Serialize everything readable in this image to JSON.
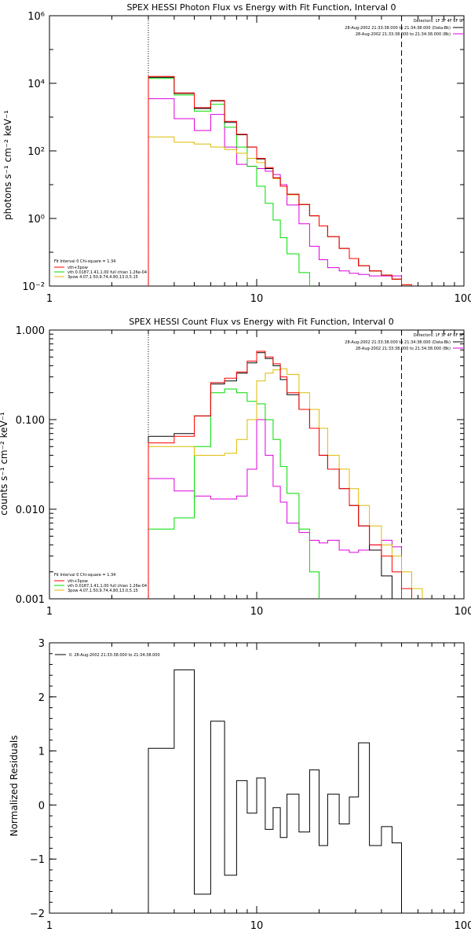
{
  "chart_data": [
    {
      "type": "line",
      "title": "SPEX HESSI Photon Flux vs Energy with Fit Function, Interval 0",
      "xlabel": "",
      "ylabel": "photons s⁻¹ cm⁻² keV⁻¹",
      "xscale": "log",
      "yscale": "log",
      "xlim": [
        1,
        100
      ],
      "ylim": [
        0.01,
        1000000
      ],
      "x_ticks": [
        "1",
        "10",
        "100"
      ],
      "y_ticks": [
        "10⁻²",
        "10⁰",
        "10²",
        "10⁴",
        "10⁶"
      ],
      "info_lines": [
        "Detectors: 1F 3F 4F 6F 9F",
        "28-Aug-2002 21:33:38.000 to 21:34:38.000 (Data-Bk)",
        "28-Aug-2002 21:33:38.000 to 21:34:38.000 (Bk)"
      ],
      "fit_text": "Fit Interval 0   Chi-square = 1.34",
      "fit_legend": [
        "vth+3pow",
        "vth 0.0187,1.41,1.00  full chian 1.26e-04",
        "3pow 4.07,1.50,9.74,4.80,13.0,5.15"
      ],
      "markers": [
        3,
        50
      ],
      "edges": [
        3,
        4,
        5,
        6,
        7,
        8,
        9,
        10,
        11,
        12,
        13,
        14,
        16,
        18,
        20,
        22,
        25,
        28,
        31,
        35,
        40,
        45,
        50,
        56,
        63
      ],
      "series": [
        {
          "name": "Data-Bk",
          "color": "#000000",
          "values": [
            15000,
            5000,
            1800,
            3000,
            700,
            300,
            130,
            58,
            30,
            16,
            9,
            5.2,
            2.6,
            1.2,
            0.6,
            0.29,
            0.13,
            0.065,
            0.04,
            0.028,
            0.021,
            0.016
          ]
        },
        {
          "name": "vth+3pow",
          "color": "#ff0000",
          "values": [
            16000,
            5200,
            1900,
            3100,
            750,
            310,
            130,
            60,
            32,
            16,
            9,
            5.2,
            2.6,
            1.2,
            0.6,
            0.29,
            0.13,
            0.065,
            0.04,
            0.028,
            0.021,
            0.016,
            0.011
          ]
        },
        {
          "name": "vth",
          "color": "#00dd00",
          "values": [
            14000,
            4500,
            1500,
            2400,
            500,
            130,
            35,
            9,
            2.8,
            0.9,
            0.27,
            0.09,
            0.025,
            0.008
          ]
        },
        {
          "name": "3pow",
          "color": "#ddbb00",
          "values": [
            260,
            180,
            160,
            130,
            110,
            85,
            60,
            45,
            30,
            15,
            9,
            5,
            2.6,
            1.2,
            0.6,
            0.29,
            0.13,
            0.065,
            0.04,
            0.028,
            0.021,
            0.016,
            0.011,
            0.007
          ]
        },
        {
          "name": "Bk",
          "color": "#dd00dd",
          "values": [
            3500,
            900,
            400,
            1200,
            130,
            40,
            35,
            30,
            25,
            20,
            10,
            2.5,
            0.7,
            0.15,
            0.06,
            0.035,
            0.028,
            0.024,
            0.022,
            0.02,
            0.02,
            0.02
          ]
        }
      ]
    },
    {
      "type": "line",
      "title": "SPEX HESSI Count Flux vs Energy with Fit Function, Interval 0",
      "xlabel": "",
      "ylabel": "counts s⁻¹ cm⁻² keV⁻¹",
      "xscale": "log",
      "yscale": "log",
      "xlim": [
        1,
        100
      ],
      "ylim": [
        0.001,
        1
      ],
      "x_ticks": [
        "1",
        "10",
        "100"
      ],
      "y_ticks": [
        "0.001",
        "0.010",
        "0.100",
        "1.000"
      ],
      "info_lines": [
        "Detectors: 1F 3F 4F 6F 9F",
        "28-Aug-2002 21:33:38.000 to 21:34:38.000 (Data-Bk)",
        "28-Aug-2002 21:33:38.000 to 21:34:38.000 (Bk)"
      ],
      "fit_text": "Fit Interval 0   Chi-square = 1.34",
      "fit_legend": [
        "vth+3pow",
        "vth 0.0187,1.41,1.00  full chian 1.26e-04",
        "3pow 4.07,1.50,9.74,4.80,13.0,5.15"
      ],
      "markers": [
        3,
        50
      ],
      "edges": [
        3,
        4,
        5,
        6,
        7,
        8,
        9,
        10,
        11,
        12,
        13,
        14,
        16,
        18,
        20,
        22,
        25,
        28,
        31,
        35,
        40,
        45,
        50,
        56,
        63
      ],
      "series": [
        {
          "name": "Data-Bk",
          "color": "#000000",
          "values": [
            0.065,
            0.07,
            0.11,
            0.25,
            0.27,
            0.33,
            0.43,
            0.56,
            0.48,
            0.4,
            0.28,
            0.19,
            0.13,
            0.08,
            0.04,
            0.028,
            0.017,
            0.011,
            0.0065,
            0.0035,
            0.0018,
            0.001
          ]
        },
        {
          "name": "vth+3pow",
          "color": "#ff0000",
          "values": [
            0.055,
            0.065,
            0.11,
            0.26,
            0.29,
            0.34,
            0.45,
            0.58,
            0.5,
            0.42,
            0.3,
            0.2,
            0.13,
            0.08,
            0.04,
            0.028,
            0.017,
            0.011,
            0.0065,
            0.004,
            0.003,
            0.002,
            0.0013,
            0.0009
          ]
        },
        {
          "name": "vth",
          "color": "#00dd00",
          "values": [
            0.006,
            0.008,
            0.05,
            0.2,
            0.22,
            0.2,
            0.16,
            0.15,
            0.1,
            0.06,
            0.03,
            0.015,
            0.006,
            0.002,
            0.0006
          ]
        },
        {
          "name": "3pow",
          "color": "#ddbb00",
          "values": [
            0.05,
            0.05,
            0.04,
            0.04,
            0.042,
            0.06,
            0.1,
            0.27,
            0.33,
            0.36,
            0.37,
            0.32,
            0.2,
            0.13,
            0.08,
            0.04,
            0.028,
            0.017,
            0.011,
            0.0065,
            0.004,
            0.003,
            0.002,
            0.0013
          ]
        },
        {
          "name": "Bk",
          "color": "#dd00dd",
          "values": [
            0.022,
            0.016,
            0.014,
            0.013,
            0.013,
            0.014,
            0.028,
            0.1,
            0.04,
            0.018,
            0.012,
            0.007,
            0.0055,
            0.0045,
            0.0042,
            0.0045,
            0.0035,
            0.0033,
            0.0035,
            0.004,
            0.0045,
            0.0038
          ]
        }
      ]
    },
    {
      "type": "line",
      "title": "",
      "xlabel": "",
      "ylabel": "Normalized Residuals",
      "xscale": "log",
      "yscale": "linear",
      "xlim": [
        1,
        100
      ],
      "ylim": [
        -2,
        3
      ],
      "x_ticks": [
        "1",
        "10",
        "100"
      ],
      "y_ticks": [
        "−2",
        "−1",
        "0",
        "1",
        "2",
        "3"
      ],
      "legend": [
        "0. 28-Aug-2002 21:33:38.000 to 21:34:38.000"
      ],
      "edges": [
        3,
        4,
        5,
        6,
        7,
        8,
        9,
        10,
        11,
        12,
        13,
        14,
        16,
        18,
        20,
        22,
        25,
        28,
        31,
        35,
        40,
        45,
        50
      ],
      "values": [
        1.05,
        2.5,
        -1.65,
        1.55,
        -1.3,
        0.45,
        -0.15,
        0.5,
        -0.45,
        -0.05,
        -0.6,
        0.2,
        -0.5,
        0.65,
        -0.75,
        0.2,
        -0.35,
        0.15,
        1.15,
        -0.75,
        -0.4,
        -0.7
      ]
    }
  ]
}
